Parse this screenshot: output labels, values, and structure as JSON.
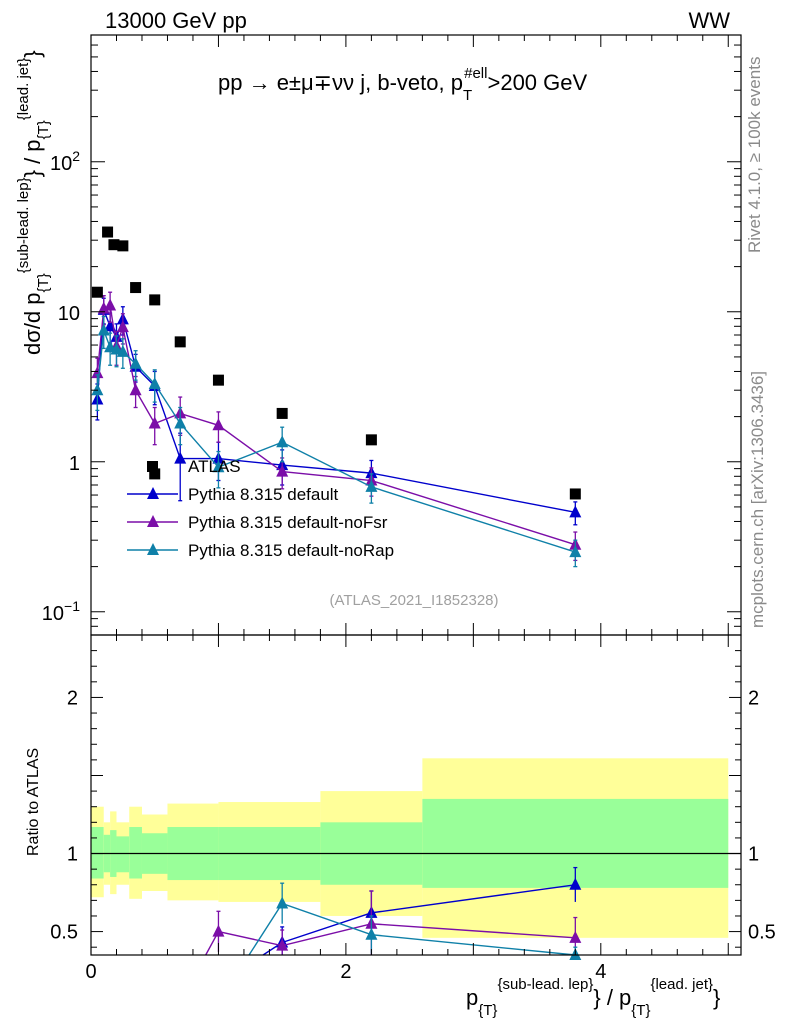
{
  "header": {
    "left": "13000 GeV pp",
    "right": "WW",
    "process": "pp → e±μ∓νν j, b-veto, p",
    "process_sub": "T",
    "process_sup": "#ell",
    "process_end": ">200 GeV"
  },
  "side_labels": {
    "rivet": "Rivet 4.1.0, ≥ 100k events",
    "mcplots": "mcplots.cern.ch [arXiv:1306.3436]"
  },
  "watermark": "(ATLAS_2021_I1852328)",
  "y_main_label": {
    "text": "dσ/d p",
    "sub": "{T}",
    "sup": "{sub-lead. lep}",
    "mid": "} / p",
    "sub2": "{T}",
    "sup2": "{lead. jet}",
    "end": "}"
  },
  "y_ratio_label": "Ratio to ATLAS",
  "x_label": {
    "p": "p",
    "sub": "{T}",
    "sup": "{sub-lead. lep}",
    "mid": "} / p",
    "sub2": "{T}",
    "sup2": "{lead. jet}",
    "end": "}"
  },
  "main_ticks": {
    "labels": [
      "10",
      "1",
      "10",
      "10"
    ],
    "exps": [
      "−1",
      "",
      "",
      "2"
    ]
  },
  "ratio_ticks": [
    "0.5",
    "1",
    "2"
  ],
  "x_ticks": [
    "0",
    "2",
    "4"
  ],
  "legend": [
    "ATLAS",
    "Pythia 8.315 default",
    "Pythia 8.315 default-noFsr",
    "Pythia 8.315 default-noRap"
  ],
  "colors": {
    "data": "#000000",
    "default": "#0000cc",
    "noFsr": "#7b0ea8",
    "noRap": "#0f80a8",
    "band_outer": "#ffff99",
    "band_inner": "#99ff99"
  },
  "chart_data": {
    "type": "scatter",
    "xlim": [
      0,
      5.1
    ],
    "ylim_main": [
      0.07,
      700
    ],
    "ylim_ratio": [
      0.35,
      2.4
    ],
    "data": {
      "name": "ATLAS",
      "x": [
        0.05,
        0.13,
        0.18,
        0.25,
        0.35,
        0.5,
        0.7,
        1.0,
        1.5,
        2.2,
        3.8
      ],
      "y": [
        13.5,
        34,
        28,
        27.5,
        14.5,
        12,
        6.3,
        3.5,
        2.1,
        1.4,
        0.61
      ],
      "outlier": {
        "x": 0.5,
        "y": 0.83
      }
    },
    "series": [
      {
        "name": "Pythia 8.315 default",
        "x": [
          0.05,
          0.1,
          0.15,
          0.2,
          0.25,
          0.35,
          0.5,
          0.7,
          1.0,
          1.5,
          2.2,
          3.8
        ],
        "y": [
          2.6,
          10.3,
          8.0,
          6.8,
          8.9,
          4.3,
          3.2,
          1.05,
          1.05,
          0.95,
          0.84,
          0.46
        ],
        "err": [
          0.7,
          2.0,
          1.8,
          1.5,
          1.9,
          0.9,
          0.8,
          0.5,
          0.3,
          0.25,
          0.18,
          0.08
        ]
      },
      {
        "name": "Pythia 8.315 default-noFsr",
        "x": [
          0.05,
          0.1,
          0.15,
          0.2,
          0.25,
          0.35,
          0.5,
          0.7,
          1.0,
          1.5,
          2.2,
          3.8
        ],
        "y": [
          3.9,
          10.5,
          11.0,
          5.9,
          7.9,
          3.0,
          1.8,
          2.1,
          1.75,
          0.86,
          0.75,
          0.28
        ],
        "err": [
          1.0,
          2.3,
          2.5,
          1.5,
          1.8,
          0.7,
          0.5,
          0.6,
          0.4,
          0.2,
          0.16,
          0.06
        ]
      },
      {
        "name": "Pythia 8.315 default-noRap",
        "x": [
          0.05,
          0.1,
          0.15,
          0.2,
          0.25,
          0.35,
          0.5,
          0.7,
          1.0,
          1.5,
          2.2,
          3.8
        ],
        "y": [
          3.0,
          7.5,
          5.8,
          5.6,
          5.4,
          4.5,
          3.3,
          1.8,
          0.92,
          1.35,
          0.68,
          0.25
        ],
        "err": [
          0.8,
          1.8,
          1.4,
          1.3,
          1.2,
          1.0,
          0.8,
          0.5,
          0.25,
          0.35,
          0.15,
          0.05
        ]
      }
    ],
    "ratio": {
      "series": [
        {
          "name": "Pythia 8.315 default",
          "x": [
            1.5,
            2.2,
            3.8
          ],
          "y": [
            0.43,
            0.62,
            0.8
          ],
          "err": [
            0.1,
            0.14,
            0.11
          ]
        },
        {
          "name": "Pythia 8.315 default-noFsr",
          "x": [
            1.0,
            1.5,
            2.2,
            3.8
          ],
          "y": [
            0.5,
            0.41,
            0.55,
            0.46
          ],
          "err": [
            0.13,
            0.1,
            0.21,
            0.13
          ]
        },
        {
          "name": "Pythia 8.315 default-noRap",
          "x": [
            1.5,
            2.2,
            3.8
          ],
          "y": [
            0.68,
            0.48,
            0.35
          ],
          "err": [
            0.13,
            0.12,
            0.05
          ]
        }
      ],
      "from_left": [
        {
          "name": "Pythia 8.315 default",
          "x_end": 1.5,
          "y_end": 0.43,
          "x_start": 1.35
        },
        {
          "name": "Pythia 8.315 default-noFsr",
          "x_end": 1.0,
          "y_end": 0.5,
          "x_start": 0.9
        },
        {
          "name": "Pythia 8.315 default-noRap",
          "x_end": 1.5,
          "y_end": 0.68,
          "x_start": 1.24
        }
      ],
      "bands": [
        {
          "x0": 0.0,
          "x1": 0.1,
          "out_lo": 0.72,
          "out_hi": 1.3,
          "in_lo": 0.84,
          "in_hi": 1.17
        },
        {
          "x0": 0.1,
          "x1": 0.15,
          "out_lo": 0.8,
          "out_hi": 1.2,
          "in_lo": 0.88,
          "in_hi": 1.12
        },
        {
          "x0": 0.15,
          "x1": 0.2,
          "out_lo": 0.74,
          "out_hi": 1.27,
          "in_lo": 0.85,
          "in_hi": 1.15
        },
        {
          "x0": 0.2,
          "x1": 0.3,
          "out_lo": 0.8,
          "out_hi": 1.2,
          "in_lo": 0.88,
          "in_hi": 1.11
        },
        {
          "x0": 0.3,
          "x1": 0.4,
          "out_lo": 0.71,
          "out_hi": 1.3,
          "in_lo": 0.84,
          "in_hi": 1.17
        },
        {
          "x0": 0.4,
          "x1": 0.6,
          "out_lo": 0.76,
          "out_hi": 1.25,
          "in_lo": 0.87,
          "in_hi": 1.13
        },
        {
          "x0": 0.6,
          "x1": 1.0,
          "out_lo": 0.7,
          "out_hi": 1.32,
          "in_lo": 0.83,
          "in_hi": 1.17
        },
        {
          "x0": 1.0,
          "x1": 1.8,
          "out_lo": 0.69,
          "out_hi": 1.33,
          "in_lo": 0.83,
          "in_hi": 1.17
        },
        {
          "x0": 1.8,
          "x1": 2.6,
          "out_lo": 0.6,
          "out_hi": 1.4,
          "in_lo": 0.8,
          "in_hi": 1.2
        },
        {
          "x0": 2.6,
          "x1": 5.0,
          "out_lo": 0.46,
          "out_hi": 1.61,
          "in_lo": 0.78,
          "in_hi": 1.35
        }
      ]
    }
  }
}
